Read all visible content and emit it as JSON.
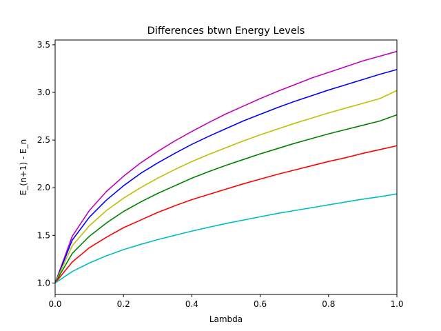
{
  "chart_data": {
    "type": "line",
    "title": "Differences btwn Energy Levels",
    "xlabel": "Lambda",
    "ylabel": "E_(n+1) - E_n",
    "xlim": [
      0.0,
      1.0
    ],
    "ylim": [
      0.88,
      3.55
    ],
    "grid": false,
    "legend": "none",
    "x_ticks": [
      0.0,
      0.2,
      0.4,
      0.6,
      0.8,
      1.0
    ],
    "x_tick_labels": [
      "0.0",
      "0.2",
      "0.4",
      "0.6",
      "0.8",
      "1.0"
    ],
    "y_ticks": [
      1.0,
      1.5,
      2.0,
      2.5,
      3.0,
      3.5
    ],
    "y_tick_labels": [
      "1.0",
      "1.5",
      "2.0",
      "2.5",
      "3.0",
      "3.5"
    ],
    "x": [
      0.0,
      0.05,
      0.1,
      0.15,
      0.2,
      0.25,
      0.3,
      0.35,
      0.4,
      0.45,
      0.5,
      0.55,
      0.6,
      0.65,
      0.7,
      0.75,
      0.8,
      0.85,
      0.9,
      0.95,
      1.0
    ],
    "series": [
      {
        "color": "#bf00bf",
        "values": [
          1.0,
          1.49,
          1.76,
          1.96,
          2.12,
          2.26,
          2.38,
          2.49,
          2.59,
          2.685,
          2.775,
          2.855,
          2.935,
          3.01,
          3.08,
          3.15,
          3.21,
          3.27,
          3.33,
          3.38,
          3.43
        ]
      },
      {
        "color": "#0000ff",
        "values": [
          1.0,
          1.45,
          1.69,
          1.87,
          2.02,
          2.15,
          2.26,
          2.36,
          2.455,
          2.54,
          2.62,
          2.7,
          2.77,
          2.84,
          2.905,
          2.965,
          3.025,
          3.08,
          3.135,
          3.19,
          3.24
        ]
      },
      {
        "color": "#bfbf00",
        "values": [
          1.0,
          1.39,
          1.6,
          1.76,
          1.89,
          2.0,
          2.1,
          2.19,
          2.275,
          2.35,
          2.42,
          2.49,
          2.555,
          2.615,
          2.675,
          2.73,
          2.785,
          2.835,
          2.885,
          2.935,
          3.02
        ]
      },
      {
        "color": "#008000",
        "values": [
          1.0,
          1.31,
          1.49,
          1.63,
          1.75,
          1.85,
          1.94,
          2.02,
          2.1,
          2.17,
          2.235,
          2.295,
          2.355,
          2.41,
          2.465,
          2.515,
          2.565,
          2.61,
          2.655,
          2.7,
          2.765
        ]
      },
      {
        "color": "#ff0000",
        "values": [
          1.0,
          1.22,
          1.37,
          1.48,
          1.58,
          1.66,
          1.74,
          1.81,
          1.875,
          1.93,
          1.985,
          2.04,
          2.09,
          2.14,
          2.185,
          2.23,
          2.275,
          2.315,
          2.36,
          2.4,
          2.44
        ]
      },
      {
        "color": "#00bfbf",
        "values": [
          1.0,
          1.12,
          1.21,
          1.285,
          1.35,
          1.405,
          1.455,
          1.5,
          1.545,
          1.585,
          1.625,
          1.66,
          1.695,
          1.73,
          1.76,
          1.79,
          1.82,
          1.85,
          1.88,
          1.905,
          1.935
        ]
      }
    ]
  }
}
